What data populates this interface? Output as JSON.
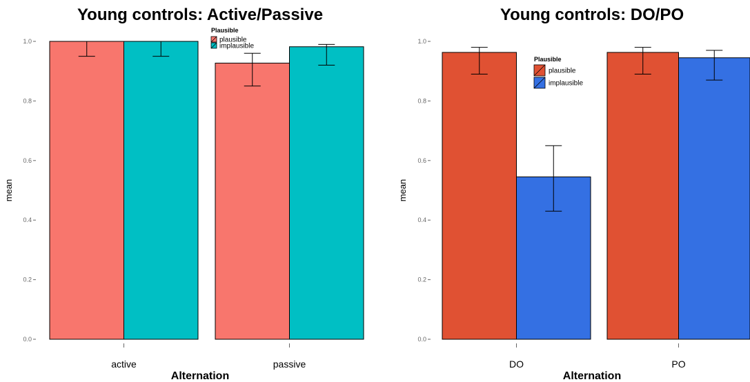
{
  "chart_data": [
    {
      "type": "bar",
      "title": "Young controls: Active/Passive",
      "xlabel": "Alternation",
      "ylabel": "mean",
      "ylim": [
        0,
        1.0
      ],
      "yticks": [
        "0.0",
        "0.2",
        "0.4",
        "0.6",
        "0.8",
        "1.0"
      ],
      "categories": [
        "active",
        "passive"
      ],
      "legend": {
        "title": "Plausible",
        "placement": "top-center"
      },
      "series": [
        {
          "name": "plausible",
          "color": "#F8766D",
          "values": [
            1.0,
            0.927
          ],
          "err_low": [
            0.95,
            0.85
          ],
          "err_high": [
            1.0,
            0.96
          ]
        },
        {
          "name": "implausible",
          "color": "#00BFC4",
          "values": [
            1.0,
            0.982
          ],
          "err_low": [
            0.95,
            0.92
          ],
          "err_high": [
            1.0,
            0.99
          ]
        }
      ]
    },
    {
      "type": "bar",
      "title": "Young controls: DO/PO",
      "xlabel": "Alternation",
      "ylabel": "mean",
      "ylim": [
        0,
        1.0
      ],
      "yticks": [
        "0.0",
        "0.2",
        "0.4",
        "0.6",
        "0.8",
        "1.0"
      ],
      "categories": [
        "DO",
        "PO"
      ],
      "legend": {
        "title": "Plausible",
        "placement": "top-center"
      },
      "series": [
        {
          "name": "plausible",
          "color": "#E05133",
          "values": [
            0.963,
            0.963
          ],
          "err_low": [
            0.89,
            0.89
          ],
          "err_high": [
            0.98,
            0.98
          ]
        },
        {
          "name": "implausible",
          "color": "#3470E3",
          "values": [
            0.545,
            0.945
          ],
          "err_low": [
            0.43,
            0.87
          ],
          "err_high": [
            0.65,
            0.97
          ]
        }
      ]
    }
  ]
}
